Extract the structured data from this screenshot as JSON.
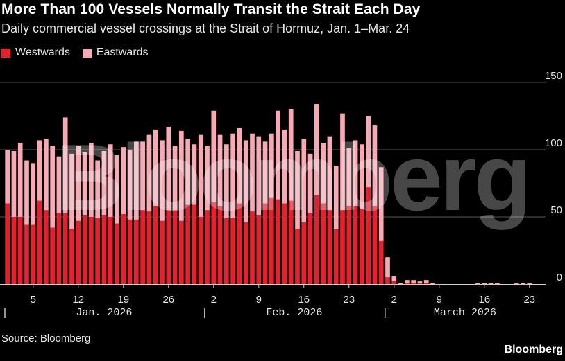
{
  "header": {
    "title": "More Than 100 Vessels Normally Transit the Strait Each Day",
    "subtitle": "Daily commercial vessel crossings at the Strait of Hormuz, Jan. 1–Mar. 24"
  },
  "legend": {
    "items": [
      {
        "label": "Westwards",
        "color": "#e8202e"
      },
      {
        "label": "Eastwards",
        "color": "#f7a9b4"
      }
    ]
  },
  "chart_data": {
    "type": "bar",
    "stacked": true,
    "title": "More Than 100 Vessels Normally Transit the Strait Each Day",
    "subtitle": "Daily commercial vessel crossings at the Strait of Hormuz, Jan. 1–Mar. 24",
    "xlabel": "",
    "ylabel": "",
    "ylim": [
      0,
      150
    ],
    "yticks": [
      0,
      50,
      100,
      150
    ],
    "grid": true,
    "legend_position": "top-left",
    "x_tick_labels": [
      {
        "day_index": 4,
        "label": "5"
      },
      {
        "day_index": 11,
        "label": "12"
      },
      {
        "day_index": 18,
        "label": "19"
      },
      {
        "day_index": 25,
        "label": "26"
      },
      {
        "day_index": 32,
        "label": "2"
      },
      {
        "day_index": 39,
        "label": "9"
      },
      {
        "day_index": 46,
        "label": "16"
      },
      {
        "day_index": 53,
        "label": "23"
      },
      {
        "day_index": 60,
        "label": "2"
      },
      {
        "day_index": 67,
        "label": "9"
      },
      {
        "day_index": 74,
        "label": "16"
      },
      {
        "day_index": 81,
        "label": "23"
      }
    ],
    "month_labels": [
      {
        "start_index": 0,
        "label": "Jan. 2026"
      },
      {
        "start_index": 31,
        "label": "Feb. 2026"
      },
      {
        "start_index": 59,
        "label": "March 2026"
      }
    ],
    "series": [
      {
        "name": "Westwards",
        "color": "#e8202e",
        "values": [
          60,
          50,
          50,
          44,
          44,
          62,
          55,
          42,
          53,
          53,
          41,
          47,
          51,
          50,
          49,
          51,
          50,
          45,
          52,
          48,
          48,
          55,
          54,
          58,
          47,
          55,
          55,
          47,
          59,
          59,
          50,
          55,
          61,
          58,
          49,
          49,
          60,
          46,
          54,
          51,
          60,
          64,
          63,
          60,
          62,
          41,
          46,
          53,
          66,
          60,
          55,
          41,
          55,
          58,
          58,
          56,
          72,
          58,
          32,
          5,
          2,
          0,
          1,
          1,
          1,
          1,
          0,
          0,
          0,
          0,
          0,
          0,
          0,
          0,
          0,
          0,
          0,
          0,
          0,
          0,
          0,
          0,
          0,
          0
        ]
      },
      {
        "name": "Eastwards",
        "color": "#f7a9b4",
        "values": [
          40,
          49,
          55,
          48,
          46,
          45,
          53,
          61,
          42,
          71,
          56,
          56,
          47,
          55,
          43,
          48,
          54,
          51,
          50,
          52,
          58,
          51,
          57,
          57,
          60,
          62,
          48,
          67,
          49,
          45,
          61,
          48,
          68,
          53,
          55,
          63,
          56,
          61,
          58,
          59,
          46,
          48,
          66,
          55,
          68,
          58,
          62,
          44,
          68,
          45,
          55,
          47,
          72,
          43,
          49,
          48,
          53,
          60,
          55,
          15,
          4,
          1,
          2,
          2,
          1,
          2,
          1,
          0,
          0,
          0,
          0,
          0,
          0,
          1,
          1,
          1,
          1,
          0,
          0,
          1,
          1,
          1,
          0,
          0
        ]
      }
    ]
  },
  "source": "Source: Bloomberg",
  "brand": "Bloomberg",
  "watermark": "Bloomberg"
}
